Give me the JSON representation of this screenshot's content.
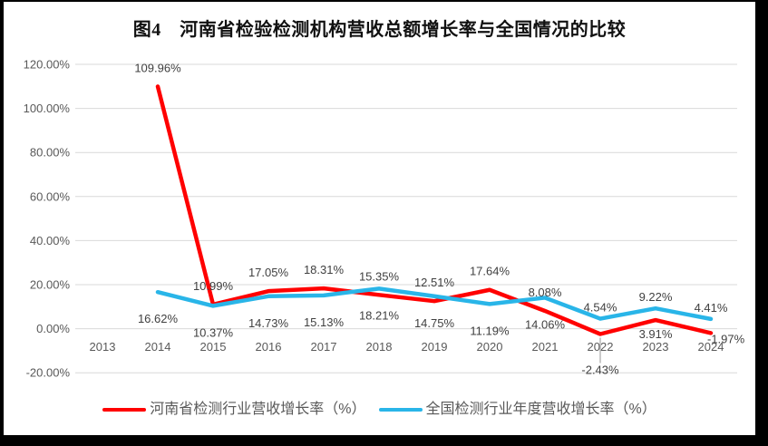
{
  "chart_data": {
    "type": "line",
    "title": "图4　河南省检验检测机构营收总额增长率与全国情况的比较",
    "categories": [
      "2013",
      "2014",
      "2015",
      "2016",
      "2017",
      "2018",
      "2019",
      "2020",
      "2021",
      "2022",
      "2023",
      "2024"
    ],
    "series": [
      {
        "name": "河南省检测行业营收增长率（%）",
        "color": "#FF0000",
        "values": [
          null,
          109.96,
          10.99,
          17.05,
          18.31,
          15.35,
          12.51,
          17.64,
          8.08,
          -2.43,
          3.91,
          -1.97
        ],
        "labels": [
          null,
          "109.96%",
          "10.99%",
          "17.05%",
          "18.31%",
          "15.35%",
          "12.51%",
          "17.64%",
          "8.08%",
          "-2.43%",
          "3.91%",
          "-1.97%"
        ],
        "label_positions": [
          null,
          "above",
          "above",
          "above",
          "above",
          "above",
          "above",
          "above",
          "above",
          "leader-below",
          "below-near",
          "right"
        ]
      },
      {
        "name": "全国检测行业年度营收增长率（%）",
        "color": "#29B5E8",
        "values": [
          null,
          16.62,
          10.37,
          14.73,
          15.13,
          18.21,
          14.75,
          11.19,
          14.06,
          4.54,
          9.22,
          4.41
        ],
        "labels": [
          null,
          "16.62%",
          "10.37%",
          "14.73%",
          "15.13%",
          "18.21%",
          "14.75%",
          "11.19%",
          "14.06%",
          "4.54%",
          "9.22%",
          "4.41%"
        ],
        "label_positions": [
          null,
          "below",
          "below",
          "below",
          "below",
          "below",
          "below",
          "below",
          "below",
          "above-near",
          "above-near",
          "above-near"
        ]
      }
    ],
    "y_axis": {
      "tick_labels": [
        "120.00%",
        "100.00%",
        "80.00%",
        "60.00%",
        "40.00%",
        "20.00%",
        "0.00%",
        "-20.00%"
      ],
      "tick_values": [
        120,
        100,
        80,
        60,
        40,
        20,
        0,
        -20
      ]
    },
    "ylim": [
      -20,
      120
    ],
    "grid": true,
    "legend_position": "bottom",
    "colors": {
      "grid": "#D9D9D9",
      "axis_text": "#595959",
      "data_label_text": "#404040",
      "leader_line": "#A6A6A6",
      "frame": "#000000",
      "background": "#FFFFFF"
    }
  }
}
